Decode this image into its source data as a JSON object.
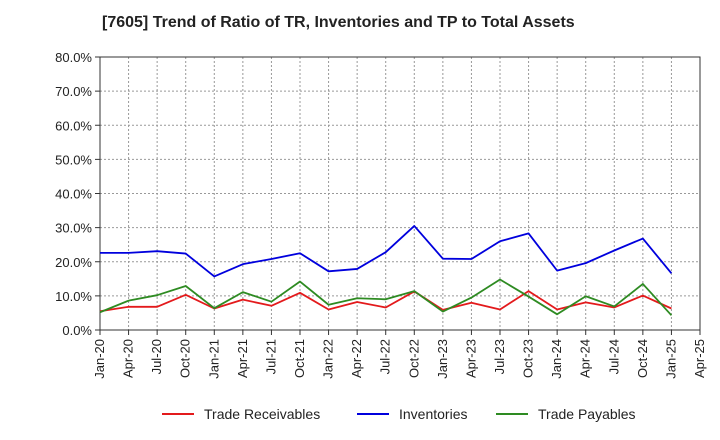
{
  "chart_data": {
    "type": "line",
    "title": "[7605]  Trend of Ratio of TR, Inventories and TP to Total Assets",
    "xlabel": "",
    "ylabel": "",
    "ylim": [
      0,
      80
    ],
    "grid": true,
    "legend_position": "bottom",
    "x_ticks": [
      "Jan-20",
      "Apr-20",
      "Jul-20",
      "Oct-20",
      "Jan-21",
      "Apr-21",
      "Jul-21",
      "Oct-21",
      "Jan-22",
      "Apr-22",
      "Jul-22",
      "Oct-22",
      "Jan-23",
      "Apr-23",
      "Jul-23",
      "Oct-23",
      "Jan-24",
      "Apr-24",
      "Jul-24",
      "Oct-24",
      "Jan-25",
      "Apr-25"
    ],
    "y_ticks": [
      "0.0%",
      "10.0%",
      "20.0%",
      "30.0%",
      "40.0%",
      "50.0%",
      "60.0%",
      "70.0%",
      "80.0%"
    ],
    "series": [
      {
        "name": "Trade Receivables",
        "color": "#e31a1c",
        "values": [
          5.5,
          6.8,
          6.8,
          10.3,
          6.3,
          8.9,
          7.1,
          10.9,
          6.0,
          8.2,
          6.6,
          11.3,
          5.9,
          8.0,
          6.0,
          11.4,
          6.0,
          8.1,
          6.6,
          10.1,
          6.3
        ]
      },
      {
        "name": "Inventories",
        "color": "#0000dd",
        "values": [
          22.6,
          22.6,
          23.1,
          22.4,
          15.7,
          19.3,
          20.8,
          22.5,
          17.2,
          17.9,
          22.8,
          30.5,
          20.9,
          20.8,
          26.0,
          28.3,
          17.4,
          19.6,
          23.3,
          26.8,
          16.6
        ]
      },
      {
        "name": "Trade Payables",
        "color": "#2e8b22",
        "values": [
          5.2,
          8.6,
          10.2,
          12.9,
          6.4,
          11.1,
          8.3,
          14.2,
          7.4,
          9.3,
          9.0,
          11.4,
          5.4,
          9.5,
          14.8,
          9.8,
          4.6,
          9.9,
          6.9,
          13.5,
          4.3
        ]
      }
    ]
  }
}
